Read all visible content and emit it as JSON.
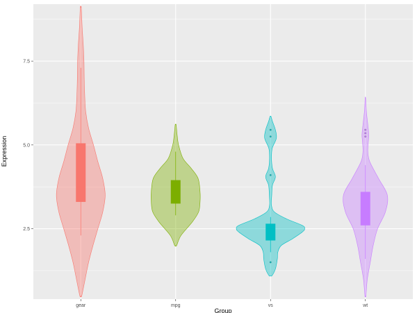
{
  "chart_data": {
    "type": "violin",
    "title": "",
    "xlabel": "Group",
    "ylabel": "Expression",
    "ylim": [
      0.4,
      9.2
    ],
    "yticks": [
      2.5,
      5.0,
      7.5
    ],
    "ytick_labels": [
      "2.5",
      "5.0",
      "7.5"
    ],
    "categories": [
      "gear",
      "mpg",
      "vs",
      "wt"
    ],
    "grid": true,
    "legend": "none",
    "series": [
      {
        "category": "gear",
        "color": "#F8766D",
        "box": {
          "q1": 3.3,
          "q3": 5.05,
          "whisker_low": 2.3,
          "whisker_high": 7.3
        },
        "outliers": [],
        "density": [
          [
            0.5,
            0.2
          ],
          [
            1.0,
            0.9
          ],
          [
            1.5,
            1.6
          ],
          [
            2.0,
            2.5
          ],
          [
            2.5,
            3.5
          ],
          [
            3.0,
            4.5
          ],
          [
            3.5,
            5.0
          ],
          [
            4.0,
            4.5
          ],
          [
            4.5,
            3.5
          ],
          [
            5.0,
            2.6
          ],
          [
            5.5,
            1.6
          ],
          [
            6.0,
            1.0
          ],
          [
            6.5,
            0.8
          ],
          [
            7.0,
            0.7
          ],
          [
            7.5,
            0.65
          ],
          [
            8.0,
            0.5
          ],
          [
            8.5,
            0.28
          ],
          [
            9.1,
            0.1
          ]
        ]
      },
      {
        "category": "mpg",
        "color": "#7CAE00",
        "box": {
          "q1": 3.25,
          "q3": 3.95,
          "whisker_low": 2.9,
          "whisker_high": 4.8
        },
        "outliers": [],
        "density": [
          [
            2.0,
            0.2
          ],
          [
            2.3,
            1.1
          ],
          [
            2.7,
            3.4
          ],
          [
            3.0,
            4.7
          ],
          [
            3.3,
            5.0
          ],
          [
            3.6,
            5.0
          ],
          [
            4.0,
            4.6
          ],
          [
            4.3,
            3.2
          ],
          [
            4.6,
            1.5
          ],
          [
            5.0,
            0.6
          ],
          [
            5.3,
            0.3
          ],
          [
            5.6,
            0.1
          ]
        ]
      },
      {
        "category": "vs",
        "color": "#00BFC4",
        "box": {
          "q1": 2.15,
          "q3": 2.65,
          "whisker_low": 1.8,
          "whisker_high": 2.85
        },
        "outliers": [
          1.5,
          4.1,
          5.25,
          5.45
        ],
        "density": [
          [
            1.1,
            0.3
          ],
          [
            1.3,
            1.0
          ],
          [
            1.6,
            1.4
          ],
          [
            1.8,
            1.5
          ],
          [
            2.0,
            2.2
          ],
          [
            2.2,
            4.5
          ],
          [
            2.4,
            6.5
          ],
          [
            2.5,
            7.0
          ],
          [
            2.6,
            6.5
          ],
          [
            2.8,
            3.2
          ],
          [
            3.0,
            0.8
          ],
          [
            3.2,
            0.2
          ],
          [
            3.5,
            0.25
          ],
          [
            3.8,
            0.4
          ],
          [
            4.05,
            1.0
          ],
          [
            4.3,
            0.4
          ],
          [
            4.6,
            0.2
          ],
          [
            4.9,
            0.35
          ],
          [
            5.2,
            1.2
          ],
          [
            5.45,
            1.0
          ],
          [
            5.7,
            0.4
          ],
          [
            5.85,
            0.1
          ]
        ]
      },
      {
        "category": "wt",
        "color": "#C77CFF",
        "box": {
          "q1": 2.6,
          "q3": 3.6,
          "whisker_low": 1.6,
          "whisker_high": 4.4
        },
        "outliers": [
          5.25,
          5.35,
          5.45
        ],
        "density": [
          [
            0.5,
            0.1
          ],
          [
            1.0,
            0.4
          ],
          [
            1.5,
            1.0
          ],
          [
            2.0,
            1.6
          ],
          [
            2.5,
            2.5
          ],
          [
            3.0,
            4.1
          ],
          [
            3.5,
            4.5
          ],
          [
            4.0,
            2.7
          ],
          [
            4.5,
            0.9
          ],
          [
            4.8,
            0.5
          ],
          [
            5.1,
            0.6
          ],
          [
            5.3,
            0.7
          ],
          [
            5.6,
            0.5
          ],
          [
            6.0,
            0.2
          ],
          [
            6.4,
            0.05
          ]
        ]
      }
    ]
  }
}
